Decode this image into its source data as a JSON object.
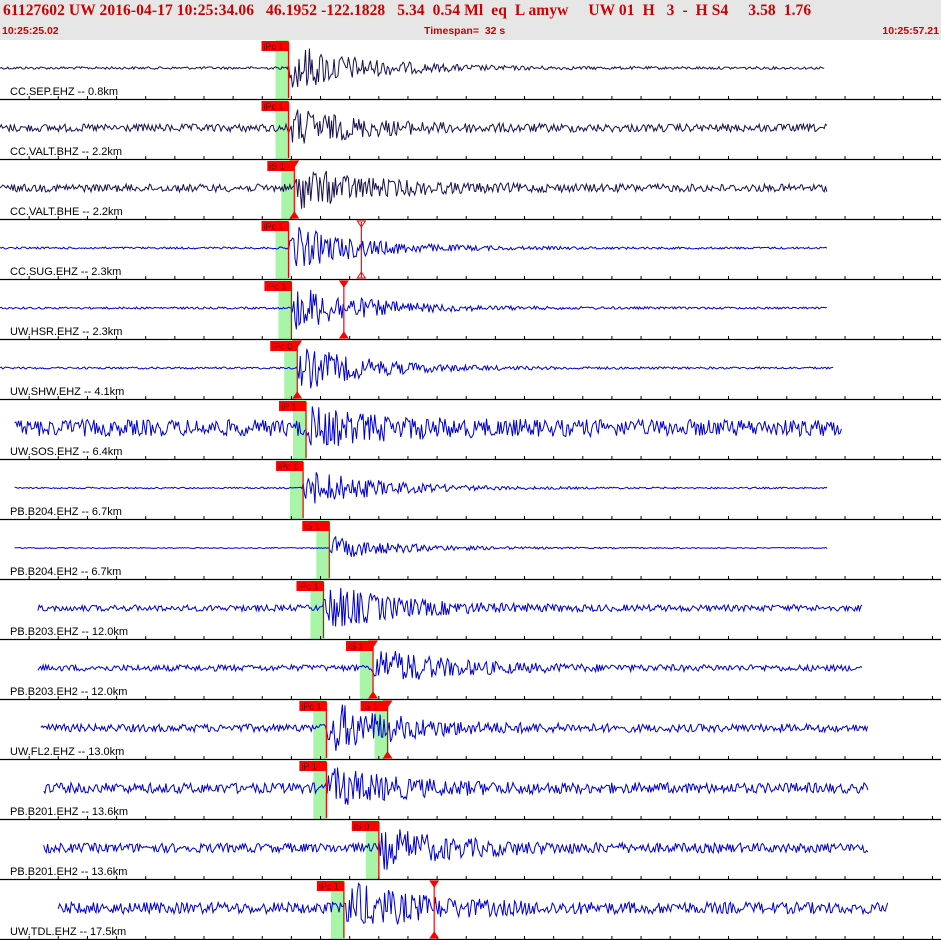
{
  "header": {
    "event_line": "61127602 UW 2016-04-17 10:25:34.06   46.1952 -122.1828   5.34  0.54 Ml  eq  L amyw     UW 01  H   3  -  H S4     3.58  1.76",
    "start_time": "10:25:25.02",
    "timespan_label": "Timespan=",
    "timespan_value": "32 s",
    "end_time": "10:25:57.21"
  },
  "colors": {
    "trace_blue": "#0000d0",
    "trace_dark": "#1a1050",
    "pick_red": "#ff0000",
    "window_green": "#a8f5a8",
    "header_bg": "#e6e6e6",
    "header_text": "#cc0000"
  },
  "window": {
    "start_s": 0,
    "end_s": 32.19
  },
  "traces": [
    {
      "label": "CC.SEP.EHZ -- 0.8km",
      "color": "dark",
      "amp": 1.0,
      "noise": 0.05,
      "start_s": 0.0,
      "end_s": 28.3,
      "picks": [
        {
          "label": "iPc 1",
          "t": 9.9,
          "marker": "none"
        }
      ]
    },
    {
      "label": "CC.VALT.BHZ -- 2.2km",
      "color": "dark",
      "amp": 0.7,
      "noise": 0.15,
      "start_s": 0.0,
      "end_s": 28.4,
      "picks": [
        {
          "label": "iPc 1",
          "t": 9.9,
          "marker": "none"
        }
      ]
    },
    {
      "label": "CC.VALT.BHE -- 2.2km",
      "color": "dark",
      "amp": 0.8,
      "noise": 0.15,
      "start_s": 0.0,
      "end_s": 28.4,
      "picks": [
        {
          "label": "iS 1",
          "t": 10.1,
          "marker": "filled"
        }
      ]
    },
    {
      "label": "CC.SUG.EHZ -- 2.3km",
      "color": "blue",
      "amp": 0.9,
      "noise": 0.04,
      "start_s": 0.0,
      "end_s": 28.4,
      "picks": [
        {
          "label": "iPc 1",
          "t": 9.9,
          "marker": "none"
        },
        {
          "label": "",
          "t": 12.4,
          "marker": "hollow"
        }
      ]
    },
    {
      "label": "UW.HSR.EHZ -- 2.3km",
      "color": "blue",
      "amp": 0.95,
      "noise": 0.04,
      "start_s": 0.0,
      "end_s": 28.4,
      "picks": [
        {
          "label": "iPc 1",
          "t": 10.0,
          "marker": "none"
        },
        {
          "label": "",
          "t": 11.8,
          "marker": "filled"
        }
      ]
    },
    {
      "label": "UW.SHW.EHZ -- 4.1km",
      "color": "blue",
      "amp": 0.9,
      "noise": 0.04,
      "start_s": 0.0,
      "end_s": 28.6,
      "picks": [
        {
          "label": "iPc 0",
          "t": 10.2,
          "marker": "filled"
        }
      ]
    },
    {
      "label": "UW.SOS.EHZ -- 6.4km",
      "color": "blue",
      "amp": 0.6,
      "noise": 0.32,
      "start_s": 0.5,
      "end_s": 28.9,
      "picks": [
        {
          "label": "iP 1",
          "t": 10.5,
          "marker": "none"
        }
      ]
    },
    {
      "label": "PB.B204.EHZ -- 6.7km",
      "color": "blue",
      "amp": 0.8,
      "noise": 0.03,
      "start_s": 0.5,
      "end_s": 28.4,
      "picks": [
        {
          "label": "iPc 1",
          "t": 10.4,
          "marker": "none"
        }
      ]
    },
    {
      "label": "PB.B204.EH2 -- 6.7km",
      "color": "blue",
      "amp": 0.45,
      "noise": 0.02,
      "start_s": 0.5,
      "end_s": 28.4,
      "picks": [
        {
          "label": "iS 1",
          "t": 11.3,
          "marker": "none"
        }
      ]
    },
    {
      "label": "PB.B203.EHZ -- 12.0km",
      "color": "blue",
      "amp": 0.9,
      "noise": 0.12,
      "start_s": 1.3,
      "end_s": 29.6,
      "picks": [
        {
          "label": "iPc 1",
          "t": 11.1,
          "marker": "none"
        }
      ]
    },
    {
      "label": "PB.B203.EH2 -- 12.0km",
      "color": "blue",
      "amp": 0.75,
      "noise": 0.12,
      "start_s": 1.3,
      "end_s": 29.6,
      "picks": [
        {
          "label": "iS 1",
          "t": 12.8,
          "marker": "filled"
        }
      ]
    },
    {
      "label": "UW.FL2.EHZ -- 13.0km",
      "color": "blue",
      "amp": 0.95,
      "noise": 0.15,
      "start_s": 1.4,
      "end_s": 29.8,
      "picks": [
        {
          "label": "iPc 1",
          "t": 11.2,
          "marker": "none"
        },
        {
          "label": "iS 1",
          "t": 13.3,
          "marker": "filled"
        }
      ]
    },
    {
      "label": "PB.B201.EHZ -- 13.6km",
      "color": "blue",
      "amp": 0.7,
      "noise": 0.2,
      "start_s": 1.5,
      "end_s": 29.8,
      "picks": [
        {
          "label": "iP 1",
          "t": 11.2,
          "marker": "none"
        }
      ]
    },
    {
      "label": "PB.B201.EH2 -- 13.6km",
      "color": "blue",
      "amp": 0.75,
      "noise": 0.18,
      "start_s": 1.5,
      "end_s": 29.8,
      "picks": [
        {
          "label": "iS 0",
          "t": 13.0,
          "marker": "none"
        }
      ]
    },
    {
      "label": "UW.TDL.EHZ -- 17.5km",
      "color": "blue",
      "amp": 0.9,
      "noise": 0.22,
      "start_s": 2.0,
      "end_s": 30.5,
      "picks": [
        {
          "label": "iPc 1",
          "t": 11.8,
          "marker": "none"
        },
        {
          "label": "",
          "t": 14.9,
          "marker": "filled"
        }
      ]
    }
  ]
}
